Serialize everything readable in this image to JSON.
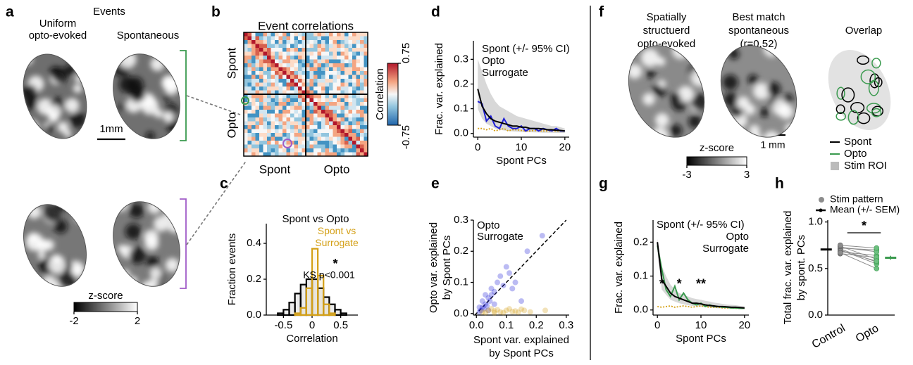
{
  "panels": {
    "a": {
      "label": "a",
      "title": "Events",
      "columns": [
        [
          "Uniform",
          "opto-evoked"
        ],
        [
          "Spontaneous"
        ]
      ],
      "scale_bar": "1mm",
      "colorbar": {
        "label": "z-score",
        "clim": [
          -2,
          2
        ],
        "ticks": [
          -2,
          2
        ]
      }
    },
    "f": {
      "label": "f",
      "columns": [
        [
          "Spatially",
          "structuerd",
          "opto-evoked"
        ],
        [
          "Best match",
          "spontaneous",
          "(r=0.52)"
        ],
        [
          "Overlap"
        ]
      ],
      "scale_bar": "1 mm",
      "colorbar": {
        "label": "z-score",
        "clim": [
          -3,
          3
        ],
        "ticks": [
          -3,
          3
        ]
      },
      "legend": [
        {
          "name": "Spont",
          "color": "#000000"
        },
        {
          "name": "Opto",
          "color": "#3a9a4e"
        },
        {
          "name": "Stim ROI",
          "color": "#bbbbbb"
        }
      ]
    }
  },
  "chart_data": [
    {
      "type": "heatmap",
      "label": "b",
      "title": "Event correlations",
      "row_labels": [
        "Spont",
        "Opto"
      ],
      "col_labels": [
        "Spont",
        "Opto"
      ],
      "colorbar_label": "Correlation",
      "clim": [
        -0.75,
        0.75
      ],
      "cticks": [
        0.75,
        -0.75
      ]
    },
    {
      "type": "histogram",
      "label": "c",
      "xlabel": "Correlation",
      "ylabel": "Fraction events",
      "xlim": [
        -0.8,
        0.8
      ],
      "xticks": [
        -0.5,
        0,
        0.5
      ],
      "ylim": [
        0,
        0.51
      ],
      "yticks": [
        {
          "value": 0,
          "label": "0.0"
        },
        0.2,
        0.4
      ],
      "bins": [
        -0.6,
        -0.5,
        -0.4,
        -0.3,
        -0.2,
        -0.1,
        0,
        0.1,
        0.2,
        0.3,
        0.4,
        0.5,
        0.6,
        0.7
      ],
      "series": [
        {
          "name": "Spont vs Opto",
          "color": "#000000",
          "values": [
            0.01,
            0.03,
            0.07,
            0.12,
            0.17,
            0.2,
            0.2,
            0.15,
            0.1,
            0.06,
            0.03,
            0.01,
            0
          ]
        },
        {
          "name": "Spont vs Surrogate",
          "color": "#d4a017",
          "values": [
            0,
            0,
            0,
            0.01,
            0.04,
            0.15,
            0.37,
            0.22,
            0.06,
            0.01,
            0,
            0,
            0
          ]
        }
      ],
      "annotations": [
        "*",
        "KS p<0.001"
      ]
    },
    {
      "type": "line",
      "label": "d",
      "xlabel": "Spont PCs",
      "ylabel": "Frac. var. explained",
      "xlim": [
        -1,
        21
      ],
      "xticks": [
        0,
        10,
        20
      ],
      "ylim": [
        -0.015,
        0.375
      ],
      "yticks": [
        {
          "value": 0,
          "label": "0.0"
        },
        0.1,
        0.2,
        0.3
      ],
      "x": [
        0,
        1,
        2,
        3,
        4,
        5,
        6,
        7,
        8,
        9,
        10,
        11,
        12,
        13,
        14,
        15,
        16,
        17,
        18,
        19,
        20
      ],
      "series": [
        {
          "name": "Spont (+/- 95% CI)",
          "color": "#000000",
          "values": [
            0.18,
            0.11,
            0.08,
            0.06,
            0.05,
            0.045,
            0.04,
            0.035,
            0.03,
            0.03,
            0.025,
            0.025,
            0.02,
            0.02,
            0.02,
            0.018,
            0.015,
            0.015,
            0.013,
            0.012,
            0.01
          ],
          "ci_upper": [
            0.3,
            0.25,
            0.2,
            0.16,
            0.13,
            0.11,
            0.1,
            0.09,
            0.08,
            0.07,
            0.065,
            0.06,
            0.055,
            0.05,
            0.045,
            0.04,
            0.035,
            0.03,
            0.03,
            0.025,
            0.02
          ],
          "ci_lower": [
            0.1,
            0.06,
            0.04,
            0.03,
            0.02,
            0.015,
            0.012,
            0.01,
            0.008,
            0.007,
            0.006,
            0.005,
            0.005,
            0.004,
            0.004,
            0.003,
            0.003,
            0.003,
            0.002,
            0.002,
            0.002
          ]
        },
        {
          "name": "Opto",
          "color": "#1f1fd6",
          "values": [
            0.13,
            0.12,
            0.05,
            0.07,
            0.03,
            0.02,
            0.06,
            0.03,
            0.02,
            0.02,
            0.03,
            0.01,
            0.02,
            0.02,
            0.01,
            0.02,
            0.015,
            0.01,
            0.02,
            0.01,
            0.01
          ]
        },
        {
          "name": "Surrogate",
          "color": "#d4a017",
          "linestyle": "dotted",
          "values": [
            0.02,
            0.02,
            0.015,
            0.02,
            0.01,
            0.015,
            0.02,
            0.01,
            0.015,
            0.015,
            0.012,
            0.01,
            0.01,
            0.012,
            0.01,
            0.01,
            0.01,
            0.01,
            0.01,
            0.01,
            0.01
          ]
        }
      ]
    },
    {
      "type": "scatter",
      "label": "e",
      "xlabel": [
        "Spont var. explained",
        "by Spont PCs"
      ],
      "ylabel": [
        "Opto var. explained",
        "by Spont PCs"
      ],
      "xlim": [
        -0.01,
        0.31
      ],
      "xticks": [
        {
          "value": 0,
          "label": "0.0"
        },
        0.1,
        0.2,
        0.3
      ],
      "ylim": [
        -0.005,
        0.3
      ],
      "yticks": [
        {
          "value": 0,
          "label": "0.0"
        },
        0.1,
        0.2,
        0.3
      ],
      "diagonal": true,
      "series": [
        {
          "name": "Opto",
          "color": "#1f1fd6",
          "x": [
            0.01,
            0.015,
            0.02,
            0.025,
            0.03,
            0.035,
            0.04,
            0.045,
            0.05,
            0.05,
            0.06,
            0.07,
            0.08,
            0.09,
            0.1,
            0.11,
            0.12,
            0.13,
            0.15,
            0.17,
            0.02,
            0.03,
            0.01,
            0.22,
            0.06,
            0.04
          ],
          "values": [
            0.005,
            0.01,
            0.02,
            0.015,
            0.03,
            0.025,
            0.05,
            0.04,
            0.06,
            0.08,
            0.07,
            0.1,
            0.12,
            0.09,
            0.15,
            0.13,
            0.08,
            0.1,
            0.04,
            0.2,
            0.04,
            0.06,
            0.02,
            0.25,
            0.03,
            0.01
          ]
        },
        {
          "name": "Surrogate",
          "color": "#d4a017",
          "x": [
            0.02,
            0.04,
            0.06,
            0.08,
            0.1,
            0.12,
            0.14,
            0.16,
            0.05,
            0.07,
            0.09,
            0.11,
            0.13,
            0.03,
            0.18,
            0.23,
            0.15,
            0.06
          ],
          "values": [
            0.005,
            0.01,
            0.008,
            0.005,
            0.01,
            0.006,
            0.004,
            0.01,
            0.015,
            0.012,
            0.003,
            0.015,
            0.008,
            0.003,
            0.005,
            0.01,
            0.014,
            0.002
          ]
        }
      ]
    },
    {
      "type": "line",
      "label": "g",
      "xlabel": "Spont PCs",
      "ylabel": "Frac. var. explained",
      "xlim": [
        -1,
        21
      ],
      "xticks": [
        0,
        10,
        20
      ],
      "ylim": [
        -0.015,
        0.265
      ],
      "yticks": [
        {
          "value": 0,
          "label": "0.0"
        },
        0.1,
        0.2
      ],
      "x": [
        0,
        1,
        2,
        3,
        4,
        5,
        6,
        7,
        8,
        9,
        10,
        11,
        12,
        13,
        14,
        15,
        16,
        17,
        18,
        19,
        20
      ],
      "series": [
        {
          "name": "Spont (+/- 95% CI)",
          "color": "#000000",
          "values": [
            0.2,
            0.09,
            0.07,
            0.05,
            0.04,
            0.035,
            0.03,
            0.025,
            0.02,
            0.02,
            0.018,
            0.015,
            0.013,
            0.012,
            0.01,
            0.01,
            0.009,
            0.008,
            0.008,
            0.007,
            0.006
          ],
          "ci_upper": [
            0.21,
            0.13,
            0.1,
            0.075,
            0.06,
            0.05,
            0.045,
            0.04,
            0.035,
            0.032,
            0.03,
            0.027,
            0.025,
            0.022,
            0.02,
            0.018,
            0.016,
            0.015,
            0.014,
            0.012,
            0.011
          ],
          "ci_lower": [
            0.17,
            0.06,
            0.045,
            0.03,
            0.025,
            0.02,
            0.017,
            0.014,
            0.012,
            0.011,
            0.01,
            0.008,
            0.007,
            0.006,
            0.005,
            0.005,
            0.004,
            0.004,
            0.003,
            0.003,
            0.003
          ]
        },
        {
          "name": "Opto",
          "color": "#3a9a4e",
          "values": [
            0.19,
            0.12,
            0.06,
            0.04,
            0.07,
            0.03,
            0.05,
            0.03,
            0.02,
            0.015,
            0.02,
            0.01,
            0.015,
            0.01,
            0.01,
            0.008,
            0.008,
            0.006,
            0.006,
            0.005,
            0.005
          ]
        },
        {
          "name": "Surrogate",
          "color": "#d4a017",
          "linestyle": "dotted",
          "values": [
            0.01,
            0.008,
            0.01,
            0.012,
            0.008,
            0.01,
            0.012,
            0.01,
            0.008,
            0.01,
            0.012,
            0.01,
            0.008,
            0.008,
            0.008,
            0.006,
            0.006,
            0.006,
            0.005,
            0.005,
            0.005
          ]
        }
      ],
      "annotations": [
        {
          "text": "*",
          "x": 1
        },
        {
          "text": "*",
          "x": 5
        },
        {
          "text": "**",
          "x": 10
        }
      ]
    },
    {
      "type": "paired",
      "label": "h",
      "ylabel": [
        "Total frac. var. explained",
        "by spont. PCs"
      ],
      "categories": [
        "Control",
        "Opto"
      ],
      "ylim": [
        0,
        1.02
      ],
      "yticks": [
        {
          "value": 0,
          "label": "0.0"
        },
        0.5,
        {
          "value": 1,
          "label": "1.0"
        }
      ],
      "pairs": {
        "name": "Stim pattern",
        "color": "#8c8c8c",
        "values": [
          [
            0.72,
            0.7
          ],
          [
            0.74,
            0.6
          ],
          [
            0.7,
            0.55
          ],
          [
            0.68,
            0.64
          ],
          [
            0.71,
            0.57
          ],
          [
            0.66,
            0.62
          ],
          [
            0.73,
            0.68
          ],
          [
            0.69,
            0.58
          ],
          [
            0.75,
            0.72
          ],
          [
            0.67,
            0.5
          ]
        ]
      },
      "mean": {
        "name": "Mean (+/- SEM)",
        "colors": [
          "#000000",
          "#3a9a4e"
        ],
        "values": [
          0.705,
          0.616
        ],
        "sem": [
          0.009,
          0.021
        ]
      },
      "annotation": "*"
    }
  ]
}
